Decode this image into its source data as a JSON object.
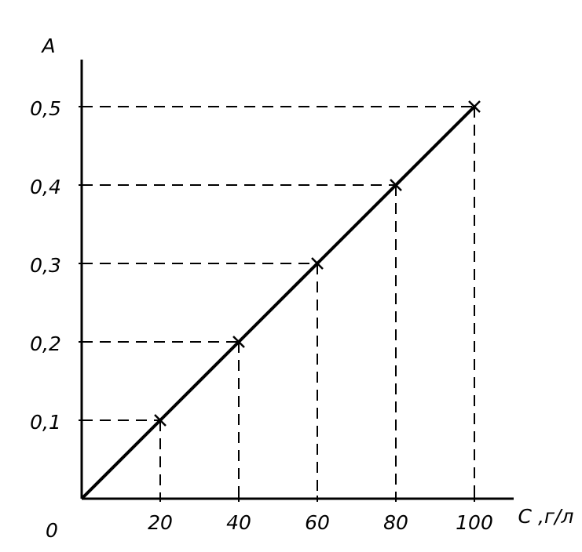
{
  "chart_data": {
    "type": "line",
    "x_label": "C ,г/л",
    "y_label": "A",
    "origin_label": "0",
    "x": [
      0,
      20,
      40,
      60,
      80,
      100
    ],
    "series": [
      {
        "color": "#000000",
        "values": [
          0,
          0.1,
          0.2,
          0.3,
          0.4,
          0.5
        ]
      }
    ],
    "xlim": [
      0,
      110
    ],
    "ylim": [
      0,
      0.56
    ],
    "xticks": [
      20,
      40,
      60,
      80,
      100
    ],
    "yticks": [
      {
        "value": 0.1,
        "label": "0,1"
      },
      {
        "value": 0.2,
        "label": "0,2"
      },
      {
        "value": 0.3,
        "label": "0,3"
      },
      {
        "value": 0.4,
        "label": "0,4"
      },
      {
        "value": 0.5,
        "label": "0,5"
      }
    ],
    "grid": false
  }
}
